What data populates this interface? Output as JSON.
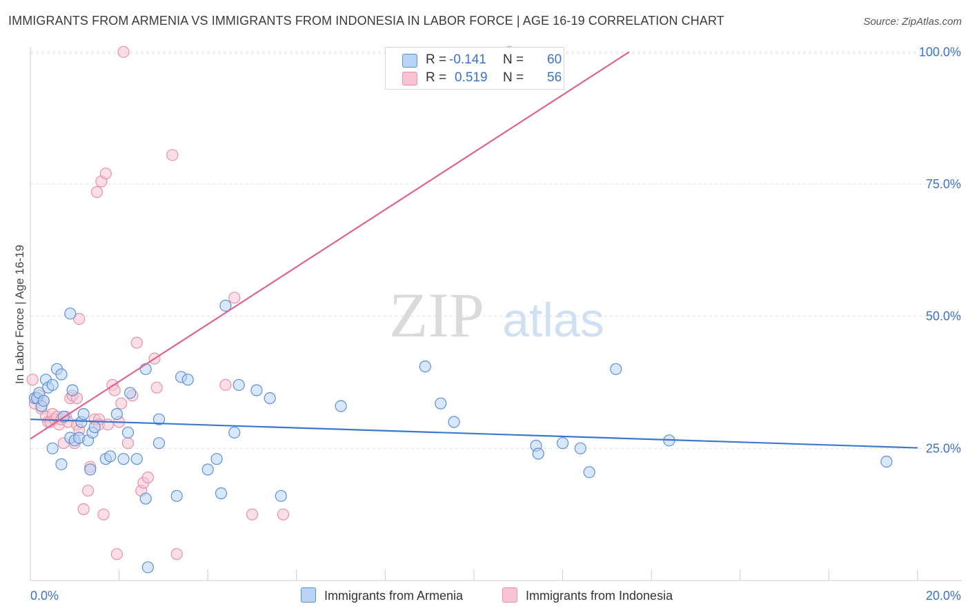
{
  "title": "IMMIGRANTS FROM ARMENIA VS IMMIGRANTS FROM INDONESIA IN LABOR FORCE | AGE 16-19 CORRELATION CHART",
  "source": "Source: ZipAtlas.com",
  "watermark": {
    "zip": "ZIP",
    "atlas": "atlas"
  },
  "colors": {
    "armenia_fill": "#b8d3f4",
    "armenia_stroke": "#5a8fd6",
    "armenia_line": "#3a78cf",
    "indonesia_fill": "#f8c4d4",
    "indonesia_stroke": "#e690aa",
    "indonesia_line": "#e0628a",
    "tick_label": "#3a73c4"
  },
  "legend": {
    "armenia": {
      "r_label": "R =",
      "r_value": "-0.141",
      "n_label": "N =",
      "n_value": "60"
    },
    "indonesia": {
      "r_label": "R =",
      "r_value": "0.519",
      "n_label": "N =",
      "n_value": "56"
    }
  },
  "chart_data": {
    "type": "scatter",
    "ylabel": "In Labor Force | Age 16-19",
    "xlim": [
      0,
      20
    ],
    "ylim": [
      0,
      102
    ],
    "x_tick_labels": [
      "0.0%",
      "20.0%"
    ],
    "y_ticks": [
      25,
      50,
      75,
      100
    ],
    "y_tick_labels": [
      "25.0%",
      "50.0%",
      "75.0%",
      "100.0%"
    ],
    "grid": true,
    "series": [
      {
        "name": "Immigrants from Armenia",
        "trend": {
          "x": [
            0,
            20
          ],
          "y": [
            30.5,
            25.1
          ]
        },
        "points": [
          [
            0.1,
            34.5
          ],
          [
            0.15,
            34.5
          ],
          [
            0.2,
            35.5
          ],
          [
            0.25,
            33
          ],
          [
            0.3,
            34
          ],
          [
            0.35,
            38
          ],
          [
            0.4,
            36.5
          ],
          [
            0.5,
            25
          ],
          [
            0.5,
            37
          ],
          [
            0.6,
            40
          ],
          [
            0.7,
            39
          ],
          [
            0.7,
            22
          ],
          [
            0.75,
            31
          ],
          [
            0.9,
            27
          ],
          [
            0.9,
            50.5
          ],
          [
            0.95,
            36
          ],
          [
            1.0,
            26.5
          ],
          [
            1.1,
            27
          ],
          [
            1.15,
            30
          ],
          [
            1.2,
            31.5
          ],
          [
            1.3,
            26.5
          ],
          [
            1.35,
            21
          ],
          [
            1.4,
            28
          ],
          [
            1.45,
            29
          ],
          [
            1.7,
            23
          ],
          [
            1.8,
            23.5
          ],
          [
            1.95,
            31.5
          ],
          [
            2.1,
            23
          ],
          [
            2.2,
            28
          ],
          [
            2.25,
            35.5
          ],
          [
            2.4,
            23
          ],
          [
            2.6,
            15.5
          ],
          [
            2.6,
            40
          ],
          [
            2.65,
            2.5
          ],
          [
            2.9,
            30.5
          ],
          [
            2.9,
            26
          ],
          [
            3.3,
            16
          ],
          [
            3.4,
            38.5
          ],
          [
            3.55,
            38
          ],
          [
            4.0,
            21
          ],
          [
            4.2,
            23
          ],
          [
            4.3,
            16.5
          ],
          [
            4.4,
            52
          ],
          [
            4.6,
            28
          ],
          [
            4.7,
            37
          ],
          [
            5.1,
            36
          ],
          [
            5.4,
            34.5
          ],
          [
            5.65,
            16
          ],
          [
            7.0,
            33
          ],
          [
            8.9,
            40.5
          ],
          [
            9.25,
            33.5
          ],
          [
            9.55,
            30
          ],
          [
            11.4,
            25.5
          ],
          [
            11.45,
            24
          ],
          [
            12.0,
            26
          ],
          [
            12.4,
            25
          ],
          [
            12.6,
            20.5
          ],
          [
            13.2,
            40
          ],
          [
            14.4,
            26.5
          ],
          [
            19.3,
            22.5
          ]
        ]
      },
      {
        "name": "Immigrants from Indonesia",
        "trend": {
          "x": [
            0,
            13.5
          ],
          "y": [
            26.8,
            100
          ]
        },
        "points": [
          [
            0.05,
            38
          ],
          [
            0.1,
            33.5
          ],
          [
            0.15,
            34.5
          ],
          [
            0.2,
            35
          ],
          [
            0.25,
            32.5
          ],
          [
            0.3,
            34
          ],
          [
            0.35,
            31
          ],
          [
            0.4,
            30
          ],
          [
            0.45,
            30
          ],
          [
            0.5,
            31.5
          ],
          [
            0.55,
            30.5
          ],
          [
            0.6,
            31
          ],
          [
            0.65,
            29.5
          ],
          [
            0.7,
            30.5
          ],
          [
            0.75,
            26
          ],
          [
            0.8,
            31
          ],
          [
            0.85,
            30
          ],
          [
            0.9,
            34.5
          ],
          [
            0.95,
            35
          ],
          [
            1.0,
            26
          ],
          [
            1.05,
            29.5
          ],
          [
            1.05,
            34.5
          ],
          [
            1.1,
            28.5
          ],
          [
            1.1,
            49.5
          ],
          [
            1.2,
            13.5
          ],
          [
            1.3,
            17
          ],
          [
            1.35,
            21.5
          ],
          [
            1.45,
            30.5
          ],
          [
            1.5,
            73.5
          ],
          [
            1.55,
            30.5
          ],
          [
            1.55,
            29.5
          ],
          [
            1.6,
            75.5
          ],
          [
            1.65,
            12.5
          ],
          [
            1.7,
            77
          ],
          [
            1.75,
            29.5
          ],
          [
            1.85,
            37
          ],
          [
            1.9,
            36
          ],
          [
            1.95,
            5
          ],
          [
            2.0,
            30
          ],
          [
            2.05,
            33.5
          ],
          [
            2.1,
            100
          ],
          [
            2.2,
            26
          ],
          [
            2.3,
            35
          ],
          [
            2.4,
            45
          ],
          [
            2.5,
            17
          ],
          [
            2.55,
            18.5
          ],
          [
            2.65,
            19.5
          ],
          [
            2.8,
            42
          ],
          [
            2.85,
            36.5
          ],
          [
            3.2,
            80.5
          ],
          [
            3.3,
            5
          ],
          [
            4.4,
            37
          ],
          [
            4.6,
            53.5
          ],
          [
            5.0,
            12.5
          ],
          [
            5.7,
            12.5
          ],
          [
            10.8,
            100
          ]
        ]
      }
    ]
  },
  "bottom_legend": [
    "Immigrants from Armenia",
    "Immigrants from Indonesia"
  ]
}
